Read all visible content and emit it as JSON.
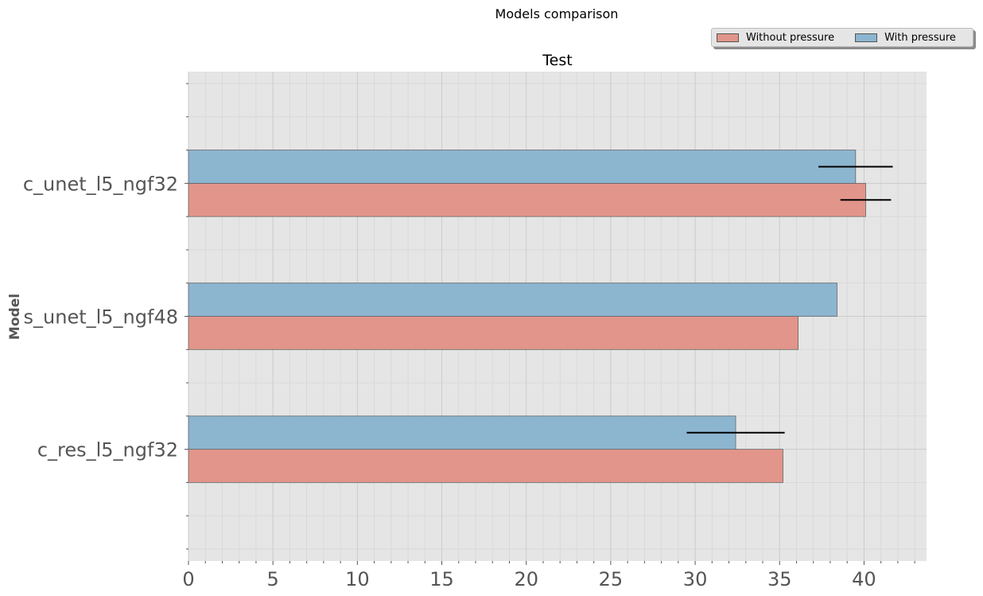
{
  "suptitle": "Models comparison",
  "chart_data": {
    "type": "bar",
    "orientation": "horizontal",
    "title": "Test",
    "xlabel": "",
    "ylabel": "Model",
    "categories": [
      "c_unet_l5_ngf32",
      "s_unet_l5_ngf48",
      "c_res_l5_ngf32"
    ],
    "xlim": [
      0,
      43.7
    ],
    "xticks": [
      0,
      5,
      10,
      15,
      20,
      25,
      30,
      35,
      40
    ],
    "grid": true,
    "legend_position": "top-right",
    "series": [
      {
        "name": "Without pressure",
        "color": "#e2958a",
        "values": [
          40.1,
          36.1,
          35.2
        ],
        "errors": [
          1.5,
          null,
          null
        ]
      },
      {
        "name": "With pressure",
        "color": "#8cb5d0",
        "values": [
          39.5,
          38.4,
          32.4
        ],
        "errors": [
          2.2,
          null,
          2.9
        ]
      }
    ]
  }
}
